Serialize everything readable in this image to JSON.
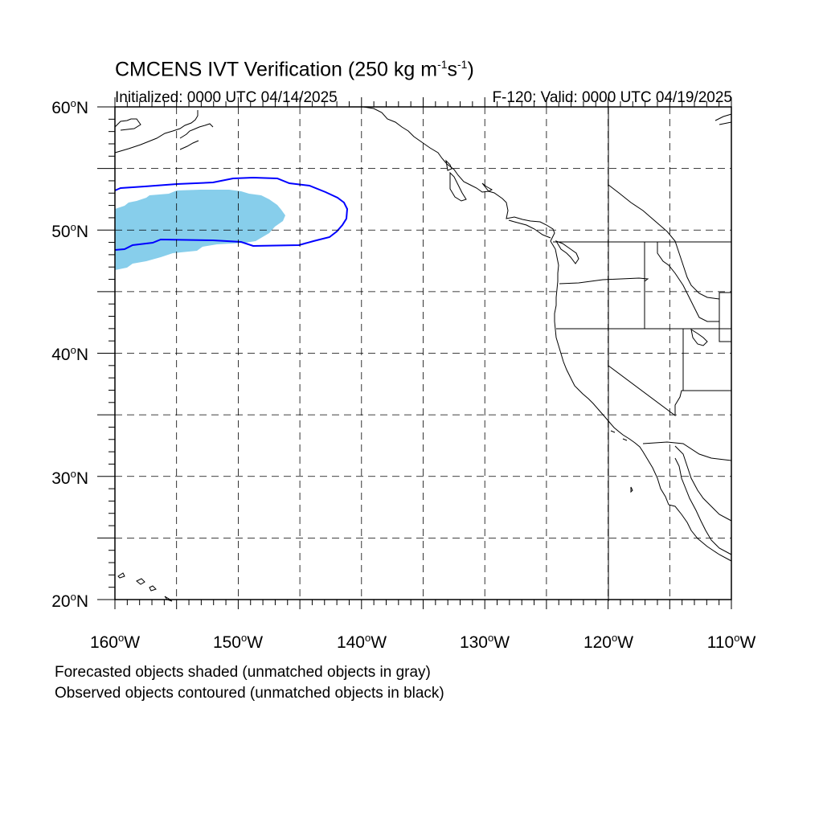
{
  "title": {
    "main": "CMCENS IVT Verification (250 kg m",
    "sup1": "-1",
    "mid": "s",
    "sup2": "-1",
    "end": ")"
  },
  "subtitle_left": "Initialized: 0000 UTC 04/14/2025",
  "subtitle_right": "F-120: Valid: 0000 UTC 04/19/2025",
  "map": {
    "lon_range": [
      -160,
      -110
    ],
    "lat_range": [
      20,
      60
    ],
    "grid": "dashed every 5 degrees",
    "lat_labels": [
      "60",
      "50",
      "40",
      "30",
      "20"
    ],
    "lat_suffix": "N",
    "lon_labels": [
      "160",
      "150",
      "140",
      "130",
      "120",
      "110"
    ],
    "lon_suffix": "W",
    "colors": {
      "forecast_fill": "#87ceeb",
      "observed_contour": "#0000ff",
      "coastline": "#000000"
    }
  },
  "footnote_1": "Forecasted objects shaded (unmatched objects in gray)",
  "footnote_2": "Observed objects contoured (unmatched objects in black)"
}
